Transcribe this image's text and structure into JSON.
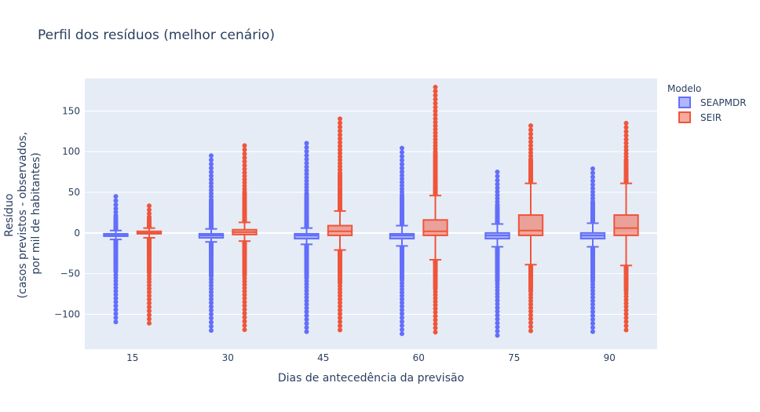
{
  "chart_data": {
    "type": "box",
    "title": "Perfil dos resíduos (melhor cenário)",
    "xlabel": "Dias de antecedência da previsão",
    "ylabel_lines": [
      "Resíduo",
      "(casos previstos - observados,",
      "por mil de habitantes)"
    ],
    "categories": [
      "15",
      "30",
      "45",
      "60",
      "75",
      "90"
    ],
    "ylim": [
      -143,
      190
    ],
    "yticks": [
      -100,
      -50,
      0,
      50,
      100,
      150
    ],
    "ytick_labels": [
      "−100",
      "−50",
      "0",
      "50",
      "100",
      "150"
    ],
    "grid": true,
    "legend": {
      "title": "Modelo",
      "position": "top-right"
    },
    "series": [
      {
        "name": "SEAPMDR",
        "color": "#636efa",
        "fill": "rgba(99,110,250,0.5)",
        "boxes": [
          {
            "q1": -4,
            "median": -2,
            "q3": -1,
            "lower_fence": -8,
            "upper_fence": 3,
            "outlier_min": -112,
            "outlier_max": 45
          },
          {
            "q1": -6,
            "median": -3,
            "q3": -1,
            "lower_fence": -11,
            "upper_fence": 5,
            "outlier_min": -120,
            "outlier_max": 95
          },
          {
            "q1": -7,
            "median": -3,
            "q3": -1,
            "lower_fence": -14,
            "upper_fence": 6,
            "outlier_min": -124,
            "outlier_max": 113
          },
          {
            "q1": -7,
            "median": -3,
            "q3": -1,
            "lower_fence": -16,
            "upper_fence": 9,
            "outlier_min": -124,
            "outlier_max": 107
          },
          {
            "q1": -7,
            "median": -3,
            "q3": 0,
            "lower_fence": -17,
            "upper_fence": 11,
            "outlier_min": -126,
            "outlier_max": 75
          },
          {
            "q1": -7,
            "median": -3,
            "q3": 0,
            "lower_fence": -17,
            "upper_fence": 12,
            "outlier_min": -124,
            "outlier_max": 79
          }
        ]
      },
      {
        "name": "SEIR",
        "color": "#ef553b",
        "fill": "rgba(239,85,59,0.5)",
        "boxes": [
          {
            "q1": -1,
            "median": 0,
            "q3": 2,
            "lower_fence": -6,
            "upper_fence": 6,
            "outlier_min": -111,
            "outlier_max": 36
          },
          {
            "q1": -2,
            "median": 1,
            "q3": 4,
            "lower_fence": -10,
            "upper_fence": 13,
            "outlier_min": -119,
            "outlier_max": 110
          },
          {
            "q1": -3,
            "median": 2,
            "q3": 9,
            "lower_fence": -21,
            "upper_fence": 27,
            "outlier_min": -122,
            "outlier_max": 143
          },
          {
            "q1": -3,
            "median": 2,
            "q3": 16,
            "lower_fence": -33,
            "upper_fence": 46,
            "outlier_min": -122,
            "outlier_max": 182
          },
          {
            "q1": -3,
            "median": 3,
            "q3": 22,
            "lower_fence": -39,
            "upper_fence": 61,
            "outlier_min": -123,
            "outlier_max": 132
          },
          {
            "q1": -3,
            "median": 6,
            "q3": 22,
            "lower_fence": -40,
            "upper_fence": 61,
            "outlier_min": -122,
            "outlier_max": 135
          }
        ]
      }
    ]
  }
}
